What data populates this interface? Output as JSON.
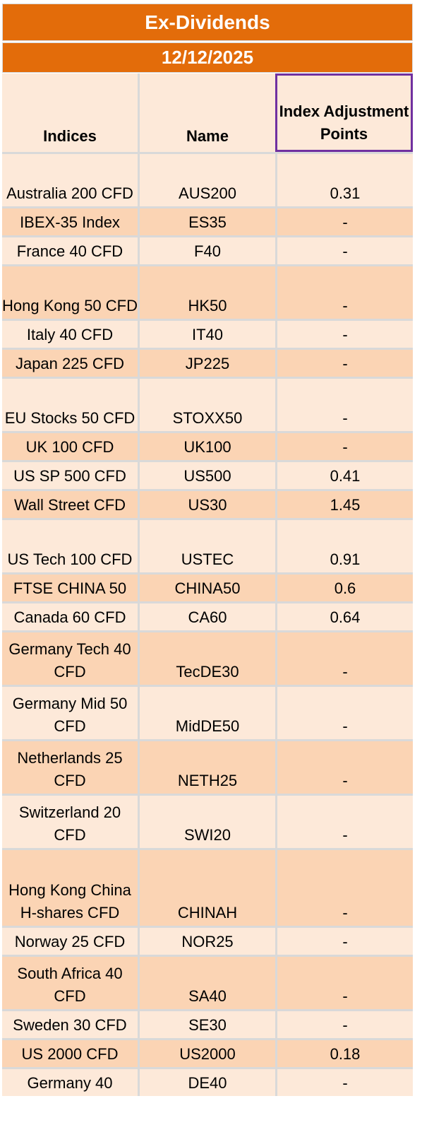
{
  "title": "Ex-Dividends",
  "date": "12/12/2025",
  "columns": {
    "indices": "Indices",
    "name": "Name",
    "adjustment": "Index Adjustment Points"
  },
  "rows": [
    {
      "index": "Australia 200 CFD",
      "name": "AUS200",
      "points": "0.31"
    },
    {
      "index": "IBEX-35 Index",
      "name": "ES35",
      "points": "-"
    },
    {
      "index": "France 40 CFD",
      "name": "F40",
      "points": "-"
    },
    {
      "index": "Hong Kong 50 CFD",
      "name": "HK50",
      "points": "-"
    },
    {
      "index": "Italy 40 CFD",
      "name": "IT40",
      "points": "-"
    },
    {
      "index": "Japan 225 CFD",
      "name": "JP225",
      "points": "-"
    },
    {
      "index": "EU Stocks 50 CFD",
      "name": "STOXX50",
      "points": "-"
    },
    {
      "index": "UK 100 CFD",
      "name": "UK100",
      "points": "-"
    },
    {
      "index": "US SP 500 CFD",
      "name": "US500",
      "points": "0.41"
    },
    {
      "index": "Wall Street CFD",
      "name": "US30",
      "points": "1.45"
    },
    {
      "index": "US Tech 100 CFD",
      "name": "USTEC",
      "points": "0.91"
    },
    {
      "index": "FTSE CHINA 50",
      "name": "CHINA50",
      "points": "0.6"
    },
    {
      "index": "Canada 60 CFD",
      "name": "CA60",
      "points": "0.64"
    },
    {
      "index": "Germany Tech 40 CFD",
      "name": "TecDE30",
      "points": "-"
    },
    {
      "index": "Germany Mid 50 CFD",
      "name": "MidDE50",
      "points": "-"
    },
    {
      "index": "Netherlands 25 CFD",
      "name": "NETH25",
      "points": "-"
    },
    {
      "index": "Switzerland 20 CFD",
      "name": "SWI20",
      "points": "-"
    },
    {
      "index": "Hong Kong China H-shares CFD",
      "name": "CHINAH",
      "points": "-"
    },
    {
      "index": "Norway 25 CFD",
      "name": "NOR25",
      "points": "-"
    },
    {
      "index": "South Africa 40 CFD",
      "name": "SA40",
      "points": "-"
    },
    {
      "index": "Sweden 30 CFD",
      "name": "SE30",
      "points": "-"
    },
    {
      "index": "US 2000 CFD",
      "name": "US2000",
      "points": "0.18"
    },
    {
      "index": "Germany 40",
      "name": "DE40",
      "points": "-"
    }
  ],
  "colors": {
    "banner": "#e36c0a",
    "row_light": "#fde9d9",
    "row_dark": "#fbd4b4",
    "header_highlight_border": "#7030a0"
  }
}
